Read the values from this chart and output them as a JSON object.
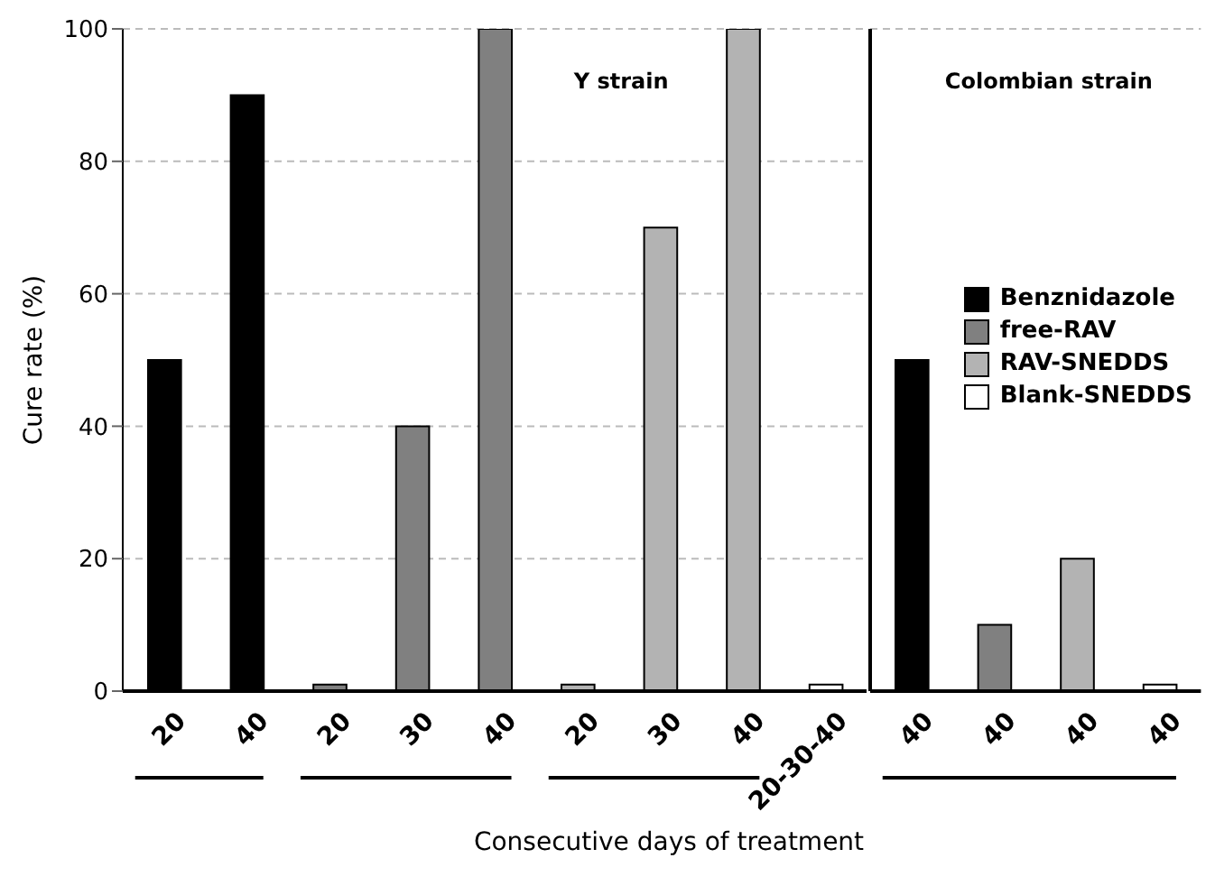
{
  "chart_data": [
    {
      "type": "bar",
      "title": "Y strain",
      "ylabel": "Cure rate (%)",
      "categories": [
        "20",
        "40",
        "20",
        "30",
        "40",
        "20",
        "30",
        "40",
        "20-30-40"
      ],
      "series": [
        {
          "color": "#000000",
          "values": [
            50,
            90,
            null,
            null,
            null,
            null,
            null,
            null,
            null
          ]
        },
        {
          "color": "#808080",
          "values": [
            null,
            null,
            1,
            40,
            100,
            null,
            null,
            null,
            null
          ]
        },
        {
          "color": "#b3b3b3",
          "values": [
            null,
            null,
            null,
            null,
            null,
            1,
            70,
            100,
            null
          ]
        },
        {
          "color": "#ffffff",
          "values": [
            null,
            null,
            null,
            null,
            null,
            null,
            null,
            null,
            1
          ]
        }
      ],
      "stacked": true,
      "ylim": [
        0,
        100
      ],
      "yticks": [
        0,
        20,
        40,
        60,
        80,
        100
      ],
      "grid": "y"
    },
    {
      "type": "bar",
      "title": "Colombian strain",
      "xlabel": "Consecutive days of treatment",
      "categories": [
        "40",
        "40",
        "40",
        "40"
      ],
      "series": [
        {
          "name": "Benznidazole",
          "color": "#000000",
          "values": [
            50,
            null,
            null,
            null
          ]
        },
        {
          "name": "free-RAV",
          "color": "#808080",
          "values": [
            null,
            10,
            null,
            null
          ]
        },
        {
          "name": "RAV-SNEDDS",
          "color": "#b3b3b3",
          "values": [
            null,
            null,
            20,
            null
          ]
        },
        {
          "name": "Blank-SNEDDS",
          "color": "#ffffff",
          "values": [
            null,
            null,
            null,
            1
          ]
        }
      ],
      "stacked": true,
      "ylim": [
        0,
        100
      ],
      "yticks": [
        0,
        20,
        40,
        60,
        80,
        100
      ],
      "grid": "y",
      "legend": "right",
      "tick_labels": "x"
    }
  ]
}
